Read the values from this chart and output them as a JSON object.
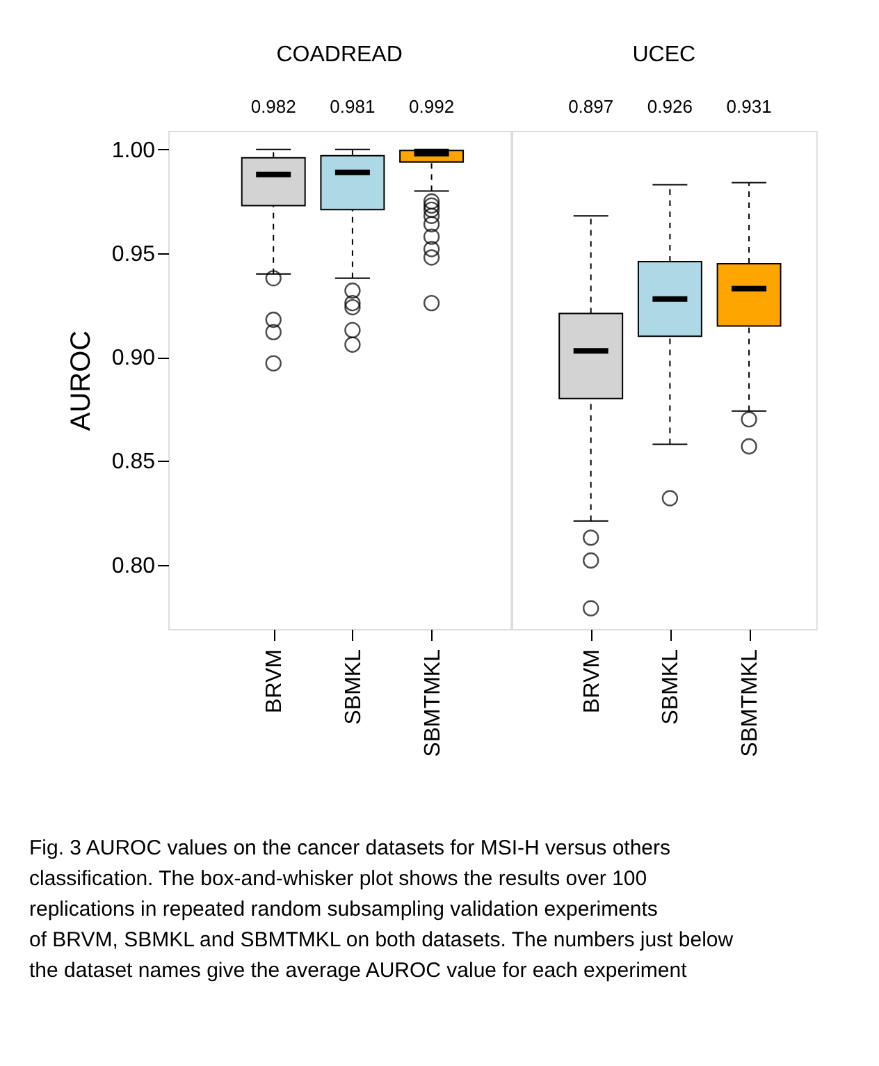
{
  "chart_data": [
    {
      "type": "box",
      "title": "COADREAD",
      "ylabel": "AUROC",
      "categories": [
        "BRVM",
        "SBMKL",
        "SBMTMKL"
      ],
      "colors": [
        "#d3d3d3",
        "#add8e6",
        "#ffa500"
      ],
      "boxes": [
        {
          "low": 0.94,
          "q1": 0.973,
          "median": 0.988,
          "q3": 0.996,
          "high": 1.0,
          "outliers": [
            0.938,
            0.918,
            0.912,
            0.897
          ]
        },
        {
          "low": 0.938,
          "q1": 0.971,
          "median": 0.989,
          "q3": 0.997,
          "high": 1.0,
          "outliers": [
            0.932,
            0.926,
            0.924,
            0.913,
            0.906
          ]
        },
        {
          "low": 0.98,
          "q1": 0.994,
          "median": 0.998,
          "q3": 0.9995,
          "high": 1.0,
          "outliers": [
            0.975,
            0.973,
            0.971,
            0.968,
            0.964,
            0.958,
            0.952,
            0.948,
            0.926
          ]
        }
      ],
      "value_labels": [
        "0.982",
        "0.981",
        "0.992"
      ],
      "annotations": [
        "Fig. 3 AUROC values on the cancer datasets for MSI-H versus others classification. The box-and-whisker plot shows the results over 100 replications in repeated random subsampling validation experiments of BRVM, SBMKL and SBMTMKL on both datasets. The numbers just below the dataset names give the average AUROC value for each experiment"
      ],
      "ylim": [
        0.769,
        1.009
      ],
      "yticks": [
        {
          "value": 0.8,
          "label": "0.80"
        },
        {
          "value": 0.85,
          "label": "0.85"
        },
        {
          "value": 0.9,
          "label": "0.90"
        },
        {
          "value": 0.95,
          "label": "0.95"
        },
        {
          "value": 1.0,
          "label": "1.00"
        }
      ],
      "grid": false
    },
    {
      "type": "box",
      "title": "UCEC",
      "categories": [
        "BRVM",
        "SBMKL",
        "SBMTMKL"
      ],
      "colors": [
        "#d3d3d3",
        "#add8e6",
        "#ffa500"
      ],
      "boxes": [
        {
          "low": 0.821,
          "q1": 0.88,
          "median": 0.903,
          "q3": 0.921,
          "high": 0.968,
          "outliers": [
            0.813,
            0.802,
            0.779
          ]
        },
        {
          "low": 0.858,
          "q1": 0.91,
          "median": 0.928,
          "q3": 0.946,
          "high": 0.983,
          "outliers": [
            0.832
          ]
        },
        {
          "low": 0.874,
          "q1": 0.915,
          "median": 0.933,
          "q3": 0.945,
          "high": 0.984,
          "outliers": [
            0.87,
            0.857
          ]
        }
      ],
      "value_labels": [
        "0.897",
        "0.926",
        "0.931"
      ],
      "ylim": [
        0.769,
        1.009
      ],
      "tick_labels": "x",
      "grid": false
    }
  ]
}
